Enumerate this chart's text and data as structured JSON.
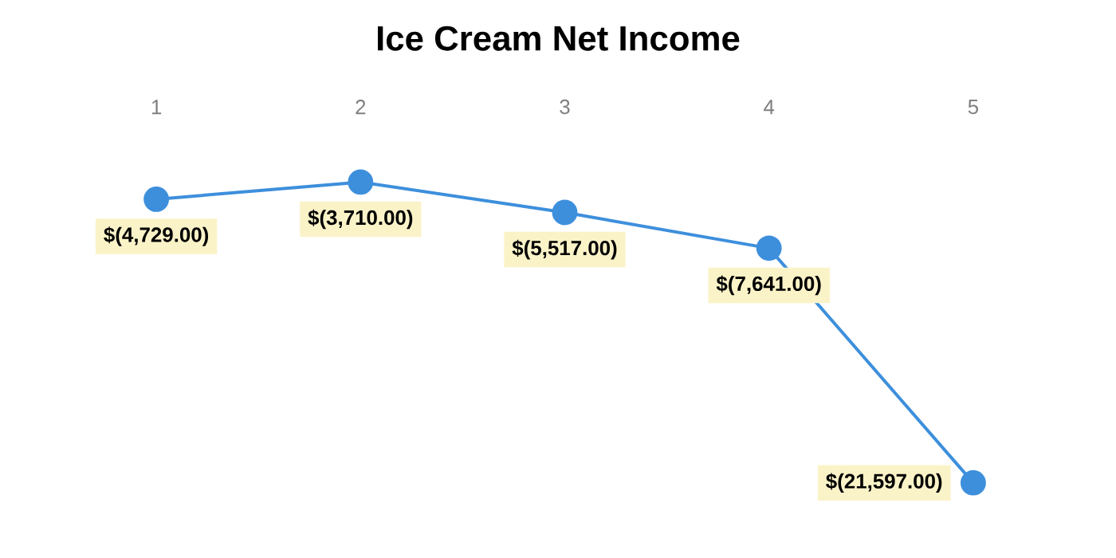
{
  "chart_data": {
    "type": "line",
    "title": "Ice Cream Net Income",
    "categories": [
      "1",
      "2",
      "3",
      "4",
      "5"
    ],
    "values": [
      -4729,
      -3710,
      -5517,
      -7641,
      -21597
    ],
    "value_labels": [
      "$(4,729.00)",
      "$(3,710.00)",
      "$(5,517.00)",
      "$(7,641.00)",
      "$(21,597.00)"
    ],
    "color": "#3d8fdc",
    "marker": "circle",
    "line_style": "solid",
    "tick_labels": "x"
  }
}
